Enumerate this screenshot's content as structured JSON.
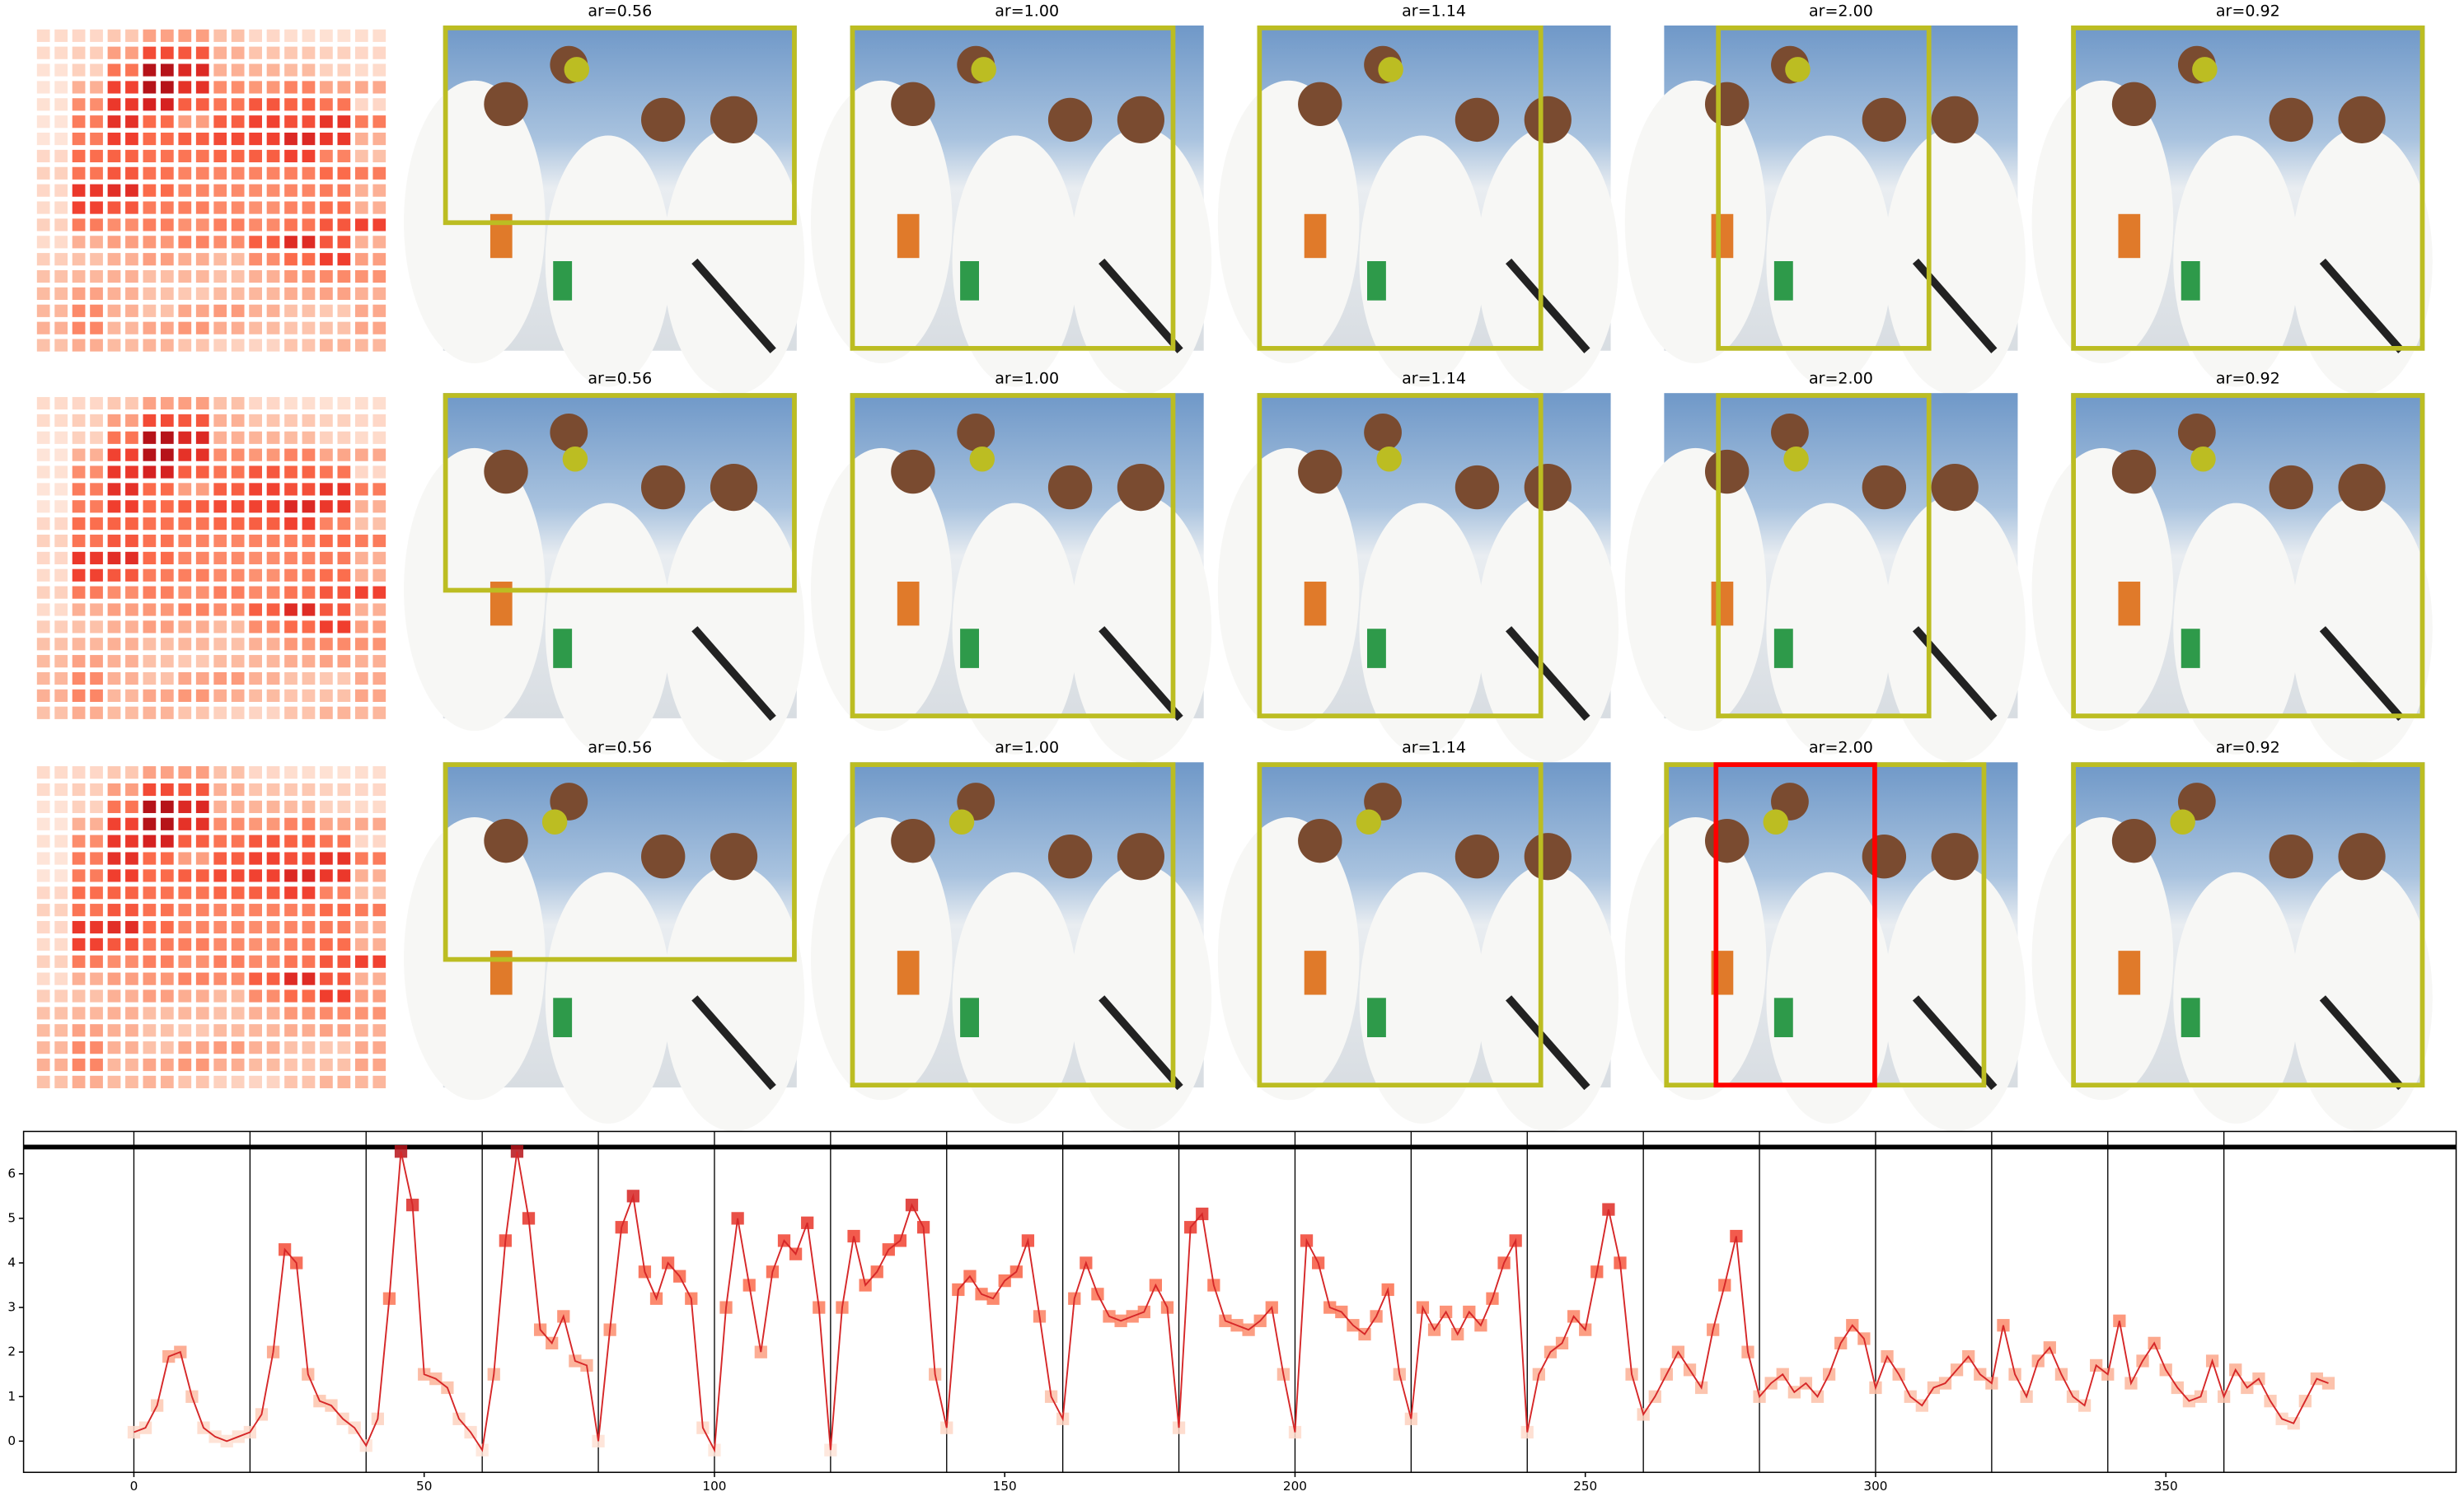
{
  "figure": {
    "panel_titles": [
      "ar=0.56",
      "ar=1.00",
      "ar=1.14",
      "ar=2.00",
      "ar=0.92"
    ]
  },
  "chart_data": {
    "type": "line",
    "x": [
      0,
      2,
      4,
      6,
      8,
      10,
      12,
      14,
      16,
      18,
      20,
      22,
      24,
      26,
      28,
      30,
      32,
      34,
      36,
      38,
      40,
      42,
      44,
      46,
      48,
      50,
      52,
      54,
      56,
      58,
      60,
      62,
      64,
      66,
      68,
      70,
      72,
      74,
      76,
      78,
      80,
      82,
      84,
      86,
      88,
      90,
      92,
      94,
      96,
      98,
      100,
      102,
      104,
      106,
      108,
      110,
      112,
      114,
      116,
      118,
      120,
      122,
      124,
      126,
      128,
      130,
      132,
      134,
      136,
      138,
      140,
      142,
      144,
      146,
      148,
      150,
      152,
      154,
      156,
      158,
      160,
      162,
      164,
      166,
      168,
      170,
      172,
      174,
      176,
      178,
      180,
      182,
      184,
      186,
      188,
      190,
      192,
      194,
      196,
      198,
      200,
      202,
      204,
      206,
      208,
      210,
      212,
      214,
      216,
      218,
      220,
      222,
      224,
      226,
      228,
      230,
      232,
      234,
      236,
      238,
      240,
      242,
      244,
      246,
      248,
      250,
      252,
      254,
      256,
      258,
      260,
      262,
      264,
      266,
      268,
      270,
      272,
      274,
      276,
      278,
      280,
      282,
      284,
      286,
      288,
      290,
      292,
      294,
      296,
      298,
      300,
      302,
      304,
      306,
      308,
      310,
      312,
      314,
      316,
      318,
      320,
      322,
      324,
      326,
      328,
      330,
      332,
      334,
      336,
      338,
      340,
      342,
      344,
      346,
      348,
      350,
      352,
      354,
      356,
      358,
      360,
      362,
      364,
      366,
      368,
      370,
      372,
      374,
      376,
      378
    ],
    "series": [
      {
        "color": "#d62728",
        "values": [
          0.2,
          0.3,
          0.8,
          1.9,
          2.0,
          1.0,
          0.3,
          0.1,
          0.0,
          0.1,
          0.2,
          0.6,
          2.0,
          4.3,
          4.0,
          1.5,
          0.9,
          0.8,
          0.5,
          0.3,
          -0.1,
          0.5,
          3.2,
          6.5,
          5.3,
          1.5,
          1.4,
          1.2,
          0.5,
          0.2,
          -0.2,
          1.5,
          4.5,
          6.5,
          5.0,
          2.5,
          2.2,
          2.8,
          1.8,
          1.7,
          0.0,
          2.5,
          4.8,
          5.5,
          3.8,
          3.2,
          4.0,
          3.7,
          3.2,
          0.3,
          -0.2,
          3.0,
          5.0,
          3.5,
          2.0,
          3.8,
          4.5,
          4.2,
          4.9,
          3.0,
          -0.2,
          3.0,
          4.6,
          3.5,
          3.8,
          4.3,
          4.5,
          5.3,
          4.8,
          1.5,
          0.3,
          3.4,
          3.7,
          3.3,
          3.2,
          3.6,
          3.8,
          4.5,
          2.8,
          1.0,
          0.5,
          3.2,
          4.0,
          3.3,
          2.8,
          2.7,
          2.8,
          2.9,
          3.5,
          3.0,
          0.3,
          4.8,
          5.1,
          3.5,
          2.7,
          2.6,
          2.5,
          2.7,
          3.0,
          1.5,
          0.2,
          4.5,
          4.0,
          3.0,
          2.9,
          2.6,
          2.4,
          2.8,
          3.4,
          1.5,
          0.5,
          3.0,
          2.5,
          2.9,
          2.4,
          2.9,
          2.6,
          3.2,
          4.0,
          4.5,
          0.2,
          1.5,
          2.0,
          2.2,
          2.8,
          2.5,
          3.8,
          5.2,
          4.0,
          1.5,
          0.6,
          1.0,
          1.5,
          2.0,
          1.6,
          1.2,
          2.5,
          3.5,
          4.6,
          2.0,
          1.0,
          1.3,
          1.5,
          1.1,
          1.3,
          1.0,
          1.5,
          2.2,
          2.6,
          2.3,
          1.2,
          1.9,
          1.5,
          1.0,
          0.8,
          1.2,
          1.3,
          1.6,
          1.9,
          1.5,
          1.3,
          2.6,
          1.5,
          1.0,
          1.8,
          2.1,
          1.5,
          1.0,
          0.8,
          1.7,
          1.5,
          2.7,
          1.3,
          1.8,
          2.2,
          1.6,
          1.2,
          0.9,
          1.0,
          1.8,
          1.0,
          1.6,
          1.2,
          1.4,
          0.9,
          0.5,
          0.4,
          0.9,
          1.4,
          1.3
        ]
      }
    ],
    "marker_cmap": "Reds",
    "xlim": [
      -19,
      400
    ],
    "ylim": [
      -0.7,
      6.95
    ],
    "xticks": [
      0,
      50,
      100,
      150,
      200,
      250,
      300,
      350
    ],
    "yticks": [
      0,
      1,
      2,
      3,
      4,
      5,
      6
    ],
    "vlines": [
      0,
      20,
      40,
      60,
      80,
      100,
      120,
      140,
      160,
      180,
      200,
      220,
      240,
      260,
      280,
      300,
      320,
      340,
      360
    ],
    "hline": 6.6
  }
}
